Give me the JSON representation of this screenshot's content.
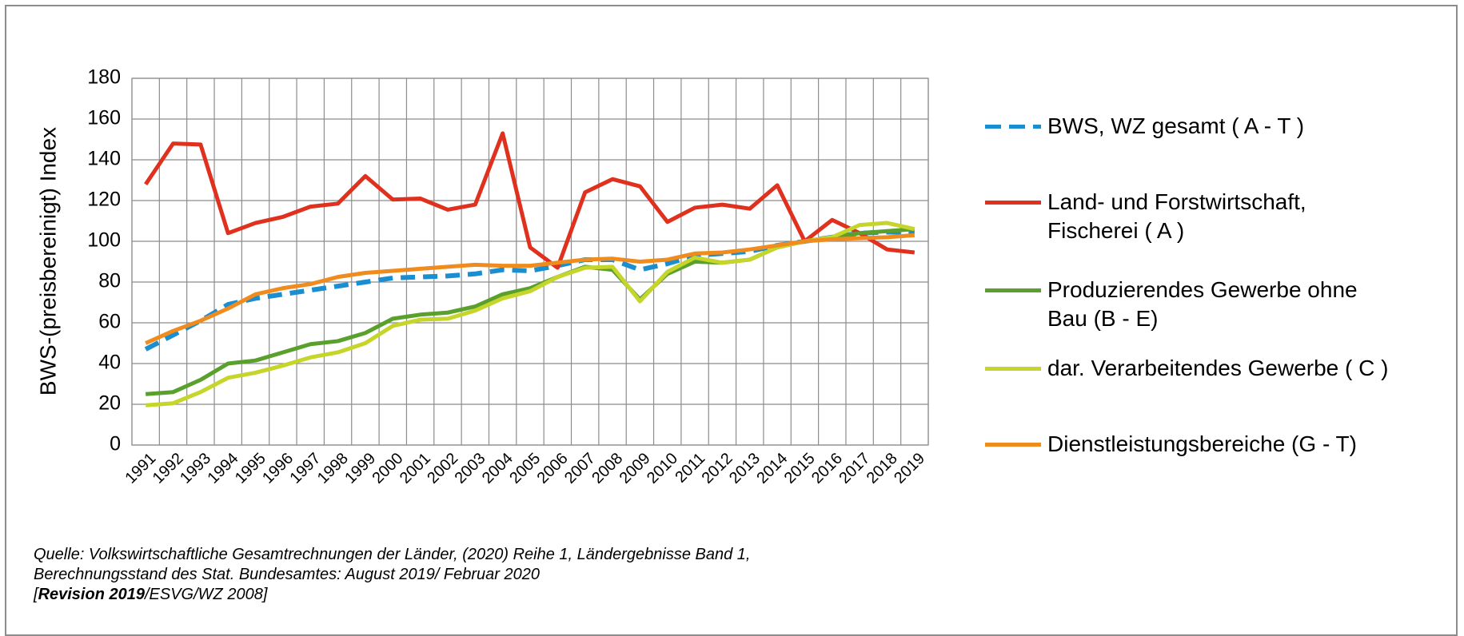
{
  "chart_data": {
    "type": "line",
    "ylabel": "BWS-(preisbereinigt) Index",
    "categories": [
      "1991",
      "1992",
      "1993",
      "1994",
      "1995",
      "1996",
      "1997",
      "1998",
      "1999",
      "2000",
      "2001",
      "2002",
      "2003",
      "2004",
      "2005",
      "2006",
      "2007",
      "2008",
      "2009",
      "2010",
      "2011",
      "2012",
      "2013",
      "2014",
      "2015",
      "2016",
      "2017",
      "2018",
      "2019"
    ],
    "ylim": [
      0,
      180
    ],
    "yticks": [
      0,
      20,
      40,
      60,
      80,
      100,
      120,
      140,
      160,
      180
    ],
    "grid": true,
    "legend": "right",
    "series": [
      {
        "name": "BWS, WZ gesamt ( A - T )",
        "color": "#1a8ed0",
        "dashed": true,
        "values": [
          47,
          54,
          61,
          69,
          72,
          74,
          76,
          78,
          80,
          82,
          82.5,
          83,
          84,
          86,
          85.5,
          88,
          91,
          91,
          86,
          89,
          93,
          94,
          95,
          98,
          100,
          102,
          104,
          104.5,
          104.5
        ]
      },
      {
        "name": "Land- und Forstwirtschaft,\nFischerei ( A )",
        "color": "#e0301e",
        "values": [
          128,
          148,
          147.5,
          104,
          109,
          112,
          117,
          118.5,
          132,
          120.5,
          121,
          115.5,
          118,
          153,
          97,
          87,
          124,
          130.5,
          127,
          109.5,
          116.5,
          118,
          116,
          127.5,
          100,
          110.5,
          104,
          96,
          94.5
        ]
      },
      {
        "name": "Produzierendes Gewerbe ohne\nBau (B - E)",
        "color": "#5aa02c",
        "values": [
          25,
          26,
          32,
          40,
          41.5,
          45.5,
          49.5,
          51,
          55,
          62,
          64,
          65,
          68,
          74,
          77,
          82.5,
          87.5,
          86,
          71.5,
          84,
          90,
          89.5,
          91,
          97,
          100,
          102,
          104,
          105,
          106
        ]
      },
      {
        "name": "dar. Verarbeitendes Gewerbe ( C )",
        "color": "#c5d52a",
        "values": [
          19.5,
          20.5,
          26,
          33,
          35.5,
          39,
          43,
          45.5,
          50,
          58.5,
          61.5,
          62,
          66,
          72,
          75.5,
          82.5,
          87,
          87.5,
          70.5,
          85,
          92,
          89.5,
          91,
          97,
          100,
          102,
          108,
          109,
          106
        ]
      },
      {
        "name": "Dienstleistungsbereiche (G - T)",
        "color": "#f08c1e",
        "values": [
          50,
          56,
          61,
          67,
          74,
          77,
          79,
          82.5,
          84.5,
          85.5,
          86.5,
          87.5,
          88.5,
          88,
          88,
          89.5,
          91,
          91.5,
          90,
          91,
          94,
          94.5,
          96,
          98,
          100,
          101,
          101.5,
          102,
          103
        ]
      }
    ],
    "source": {
      "line1": "Quelle: Volkswirtschaftliche Gesamtrechnungen der Länder, (2020) Reihe 1, Ländergebnisse Band 1,",
      "line2": "Berechnungsstand  des Stat. Bundesamtes: August 2019/ Februar 2020",
      "line3_start": "[",
      "line3_bold": "Revision 2019",
      "line3_end": "/ESVG/WZ 2008]"
    }
  }
}
